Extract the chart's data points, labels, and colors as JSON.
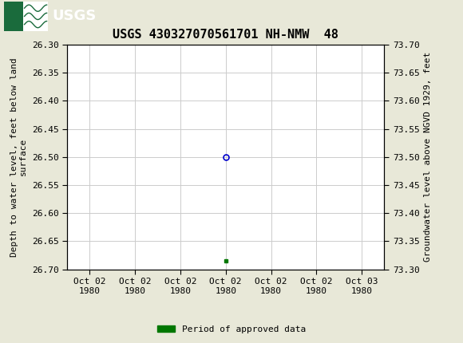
{
  "title": "USGS 430327070561701 NH-NMW  48",
  "ylabel_left": "Depth to water level, feet below land\nsurface",
  "ylabel_right": "Groundwater level above NGVD 1929, feet",
  "ylim_left": [
    26.7,
    26.3
  ],
  "ylim_right": [
    73.3,
    73.7
  ],
  "yticks_left": [
    26.3,
    26.35,
    26.4,
    26.45,
    26.5,
    26.55,
    26.6,
    26.65,
    26.7
  ],
  "yticks_right": [
    73.7,
    73.65,
    73.6,
    73.55,
    73.5,
    73.45,
    73.4,
    73.35,
    73.3
  ],
  "xtick_labels": [
    "Oct 02\n1980",
    "Oct 02\n1980",
    "Oct 02\n1980",
    "Oct 02\n1980",
    "Oct 02\n1980",
    "Oct 02\n1980",
    "Oct 03\n1980"
  ],
  "data_point_x": 3.5,
  "data_point_y": 26.5,
  "data_point_color": "#0000cc",
  "green_marker_x": 3.5,
  "green_marker_y": 26.685,
  "green_color": "#007700",
  "header_color": "#1a6b3c",
  "background_color": "#e8e8d8",
  "plot_background": "#ffffff",
  "grid_color": "#cccccc",
  "font_family": "monospace",
  "title_fontsize": 11,
  "axis_label_fontsize": 8,
  "tick_fontsize": 8,
  "legend_label": "Period of approved data",
  "xlim": [
    0,
    7
  ]
}
